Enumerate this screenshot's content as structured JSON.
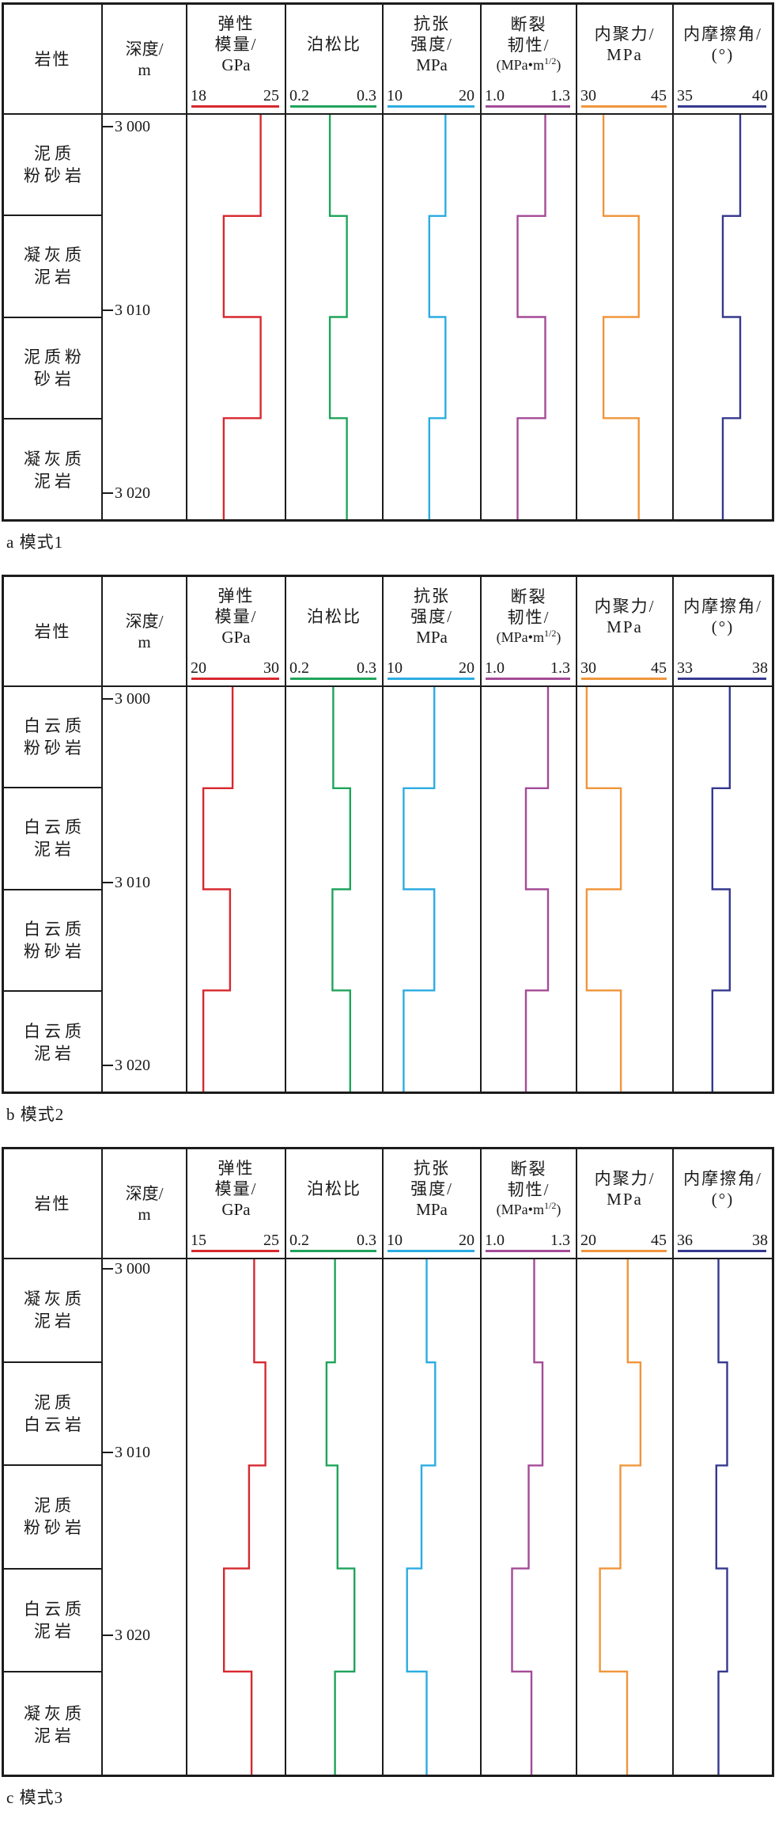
{
  "chart_data": {
    "type": "line",
    "description_note": "three stepped well-log style panels; x = property value per track, y = depth",
    "columns": {
      "lithology_header": "岩性",
      "depth_header_lines": [
        "深度/",
        "m"
      ],
      "tracks": [
        {
          "id": "elastic-modulus",
          "title_lines": [
            "弹性",
            "模量/"
          ],
          "unit_line": {
            "pre": "GPa",
            "sup": "",
            "post": ""
          },
          "color": "#d7282f"
        },
        {
          "id": "poisson-ratio",
          "title_lines": [
            "泊松比"
          ],
          "unit_line": null,
          "color": "#1fa45b"
        },
        {
          "id": "tensile-strength",
          "title_lines": [
            "抗张",
            "强度/"
          ],
          "unit_line": {
            "pre": "MPa",
            "sup": "",
            "post": ""
          },
          "color": "#2bace2"
        },
        {
          "id": "fracture-toughness",
          "title_lines": [
            "断裂",
            "韧性/"
          ],
          "unit_line": {
            "pre": "(MPa•m",
            "sup": "1/2",
            "post": ")"
          },
          "color": "#a44b97"
        },
        {
          "id": "cohesion",
          "title_lines": [
            "内聚力/",
            "MPa"
          ],
          "unit_line": null,
          "color": "#f0953b"
        },
        {
          "id": "friction-angle",
          "title_lines": [
            "内摩擦角/",
            "(°)"
          ],
          "unit_line": null,
          "color": "#35398f"
        }
      ]
    },
    "panels": [
      {
        "caption": "a 模式1",
        "depth_labels": [
          "3 000",
          "3 010",
          "3 020"
        ],
        "lithology": [
          [
            "泥质",
            "粉砂岩"
          ],
          [
            "凝灰质",
            "泥岩"
          ],
          [
            "泥质粉",
            "砂岩"
          ],
          [
            "凝灰质",
            "泥岩"
          ]
        ],
        "tracks": [
          {
            "scale": [
              "18",
              "25"
            ],
            "min": 18,
            "max": 25,
            "values": [
              23.5,
              20.5,
              23.5,
              20.5
            ]
          },
          {
            "scale": [
              "0.2",
              "0.3"
            ],
            "min": 0.2,
            "max": 0.3,
            "values": [
              0.245,
              0.265,
              0.245,
              0.265
            ]
          },
          {
            "scale": [
              "10",
              "20"
            ],
            "min": 10,
            "max": 20,
            "values": [
              16.6,
              14.7,
              16.6,
              14.7
            ]
          },
          {
            "scale": [
              "1.0",
              "1.3"
            ],
            "min": 1.0,
            "max": 1.3,
            "values": [
              1.21,
              1.11,
              1.21,
              1.11
            ]
          },
          {
            "scale": [
              "30",
              "45"
            ],
            "min": 30,
            "max": 45,
            "values": [
              33.7,
              40.0,
              33.7,
              40.0
            ]
          },
          {
            "scale": [
              "35",
              "40"
            ],
            "min": 35,
            "max": 40,
            "values": [
              38.5,
              37.5,
              38.5,
              37.5
            ]
          }
        ]
      },
      {
        "caption": "b 模式2",
        "depth_labels": [
          "3 000",
          "3 010",
          "3 020"
        ],
        "lithology": [
          [
            "白云质",
            "粉砂岩"
          ],
          [
            "白云质",
            "泥岩"
          ],
          [
            "白云质",
            "粉砂岩"
          ],
          [
            "白云质",
            "泥岩"
          ]
        ],
        "tracks": [
          {
            "scale": [
              "20",
              "30"
            ],
            "min": 20,
            "max": 30,
            "values": [
              24.6,
              21.2,
              24.3,
              21.2
            ]
          },
          {
            "scale": [
              "0.2",
              "0.3"
            ],
            "min": 0.2,
            "max": 0.3,
            "values": [
              0.249,
              0.269,
              0.248,
              0.269
            ]
          },
          {
            "scale": [
              "10",
              "20"
            ],
            "min": 10,
            "max": 20,
            "values": [
              15.3,
              11.7,
              15.3,
              11.7
            ]
          },
          {
            "scale": [
              "1.0",
              "1.3"
            ],
            "min": 1.0,
            "max": 1.3,
            "values": [
              1.22,
              1.14,
              1.22,
              1.14
            ]
          },
          {
            "scale": [
              "30",
              "45"
            ],
            "min": 30,
            "max": 45,
            "values": [
              30.7,
              36.8,
              30.7,
              36.8
            ]
          },
          {
            "scale": [
              "33",
              "38"
            ],
            "min": 33,
            "max": 38,
            "values": [
              35.9,
              34.9,
              35.9,
              34.9
            ]
          }
        ]
      },
      {
        "caption": "c 模式3",
        "depth_labels": [
          "3 000",
          "3 010",
          "3 020"
        ],
        "lithology": [
          [
            "凝灰质",
            "泥岩"
          ],
          [
            "泥质",
            "白云岩"
          ],
          [
            "泥质",
            "粉砂岩"
          ],
          [
            "白云质",
            "泥岩"
          ],
          [
            "凝灰质",
            "泥岩"
          ]
        ],
        "tracks": [
          {
            "scale": [
              "15",
              "25"
            ],
            "min": 15,
            "max": 25,
            "values": [
              22.1,
              23.4,
              21.5,
              18.6,
              21.8
            ]
          },
          {
            "scale": [
              "0.2",
              "0.3"
            ],
            "min": 0.2,
            "max": 0.3,
            "values": [
              0.251,
              0.241,
              0.254,
              0.274,
              0.251
            ]
          },
          {
            "scale": [
              "10",
              "20"
            ],
            "min": 10,
            "max": 20,
            "values": [
              14.4,
              15.4,
              13.8,
              12.1,
              14.4
            ]
          },
          {
            "scale": [
              "1.0",
              "1.3"
            ],
            "min": 1.0,
            "max": 1.3,
            "values": [
              1.17,
              1.2,
              1.15,
              1.09,
              1.16
            ]
          },
          {
            "scale": [
              "20",
              "45"
            ],
            "min": 20,
            "max": 45,
            "values": [
              33.4,
              37.2,
              31.2,
              25.1,
              33.2
            ]
          },
          {
            "scale": [
              "36",
              "38"
            ],
            "min": 36,
            "max": 38,
            "values": [
              36.9,
              37.1,
              36.85,
              37.1,
              36.9
            ]
          }
        ]
      }
    ]
  }
}
